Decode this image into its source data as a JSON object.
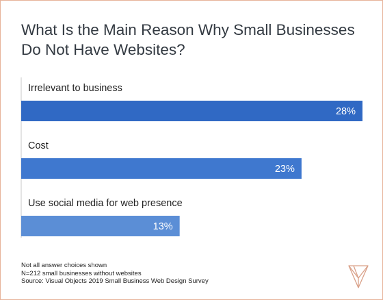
{
  "chart_data": {
    "type": "bar",
    "orientation": "horizontal",
    "title": "What Is the Main Reason Why Small Businesses Do Not Have Websites?",
    "categories": [
      "Irrelevant to business",
      "Cost",
      "Use social media for web presence"
    ],
    "values": [
      28,
      23,
      13
    ],
    "value_labels": [
      "28%",
      "23%",
      "13%"
    ],
    "value_unit": "%",
    "xlim": [
      0,
      28
    ],
    "grid": false,
    "legend": "none",
    "bar_colors": [
      "#3069c4",
      "#3f78cf",
      "#5b8ed6"
    ]
  },
  "footnotes": [
    "Not all answer choices shown",
    "N=212 small businesses without websites",
    "Source: Visual Objects 2019 Small Business Web Design Survey"
  ],
  "colors": {
    "title": "#333a42",
    "frame_border": "#e7b39a",
    "axis": "#c8c8c8",
    "logo": "#d9a088"
  },
  "logo_icon": "visual-objects-logo-icon"
}
